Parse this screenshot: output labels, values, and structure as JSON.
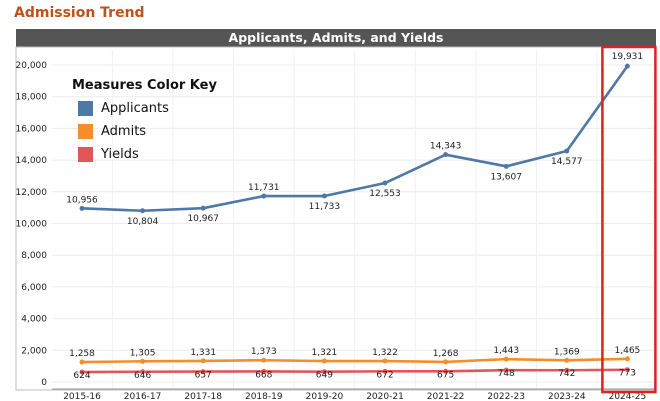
{
  "page_title": "Admission Trend",
  "colors": {
    "title": "#c0511a",
    "applicants": "#4e79a7",
    "admits": "#f28e2b",
    "yields": "#e15759",
    "highlight": "#e02020"
  },
  "legend": {
    "title": "Measures Color Key",
    "items": [
      "Applicants",
      "Admits",
      "Yields"
    ]
  },
  "chart_data": {
    "type": "line",
    "title": "Applicants, Admits, and Yields",
    "categories": [
      "2015-16",
      "2016-17",
      "2017-18",
      "2018-19",
      "2019-20",
      "2020-21",
      "2021-22",
      "2022-23",
      "2023-24",
      "2024-25"
    ],
    "series": [
      {
        "name": "Applicants",
        "values": [
          10956,
          10804,
          10967,
          11731,
          11733,
          12553,
          14343,
          13607,
          14577,
          19931
        ],
        "labels": [
          "10,956",
          "10,804",
          "10,967",
          "11,731",
          "11,733",
          "12,553",
          "14,343",
          "13,607",
          "14,577",
          "19,931"
        ]
      },
      {
        "name": "Admits",
        "values": [
          1258,
          1305,
          1331,
          1373,
          1321,
          1322,
          1268,
          1443,
          1369,
          1465
        ],
        "labels": [
          "1,258",
          "1,305",
          "1,331",
          "1,373",
          "1,321",
          "1,322",
          "1,268",
          "1,443",
          "1,369",
          "1,465"
        ]
      },
      {
        "name": "Yields",
        "values": [
          624,
          646,
          657,
          668,
          649,
          672,
          675,
          748,
          742,
          773
        ],
        "labels": [
          "624",
          "646",
          "657",
          "668",
          "649",
          "672",
          "675",
          "748",
          "742",
          "773"
        ]
      }
    ],
    "yticks": [
      "0",
      "2,000",
      "4,000",
      "6,000",
      "8,000",
      "10,000",
      "12,000",
      "14,000",
      "16,000",
      "18,000",
      "20,000"
    ],
    "ylim": [
      0,
      20000
    ],
    "grid": true,
    "legend_position": "top-left",
    "highlighted_category": "2024-25"
  }
}
